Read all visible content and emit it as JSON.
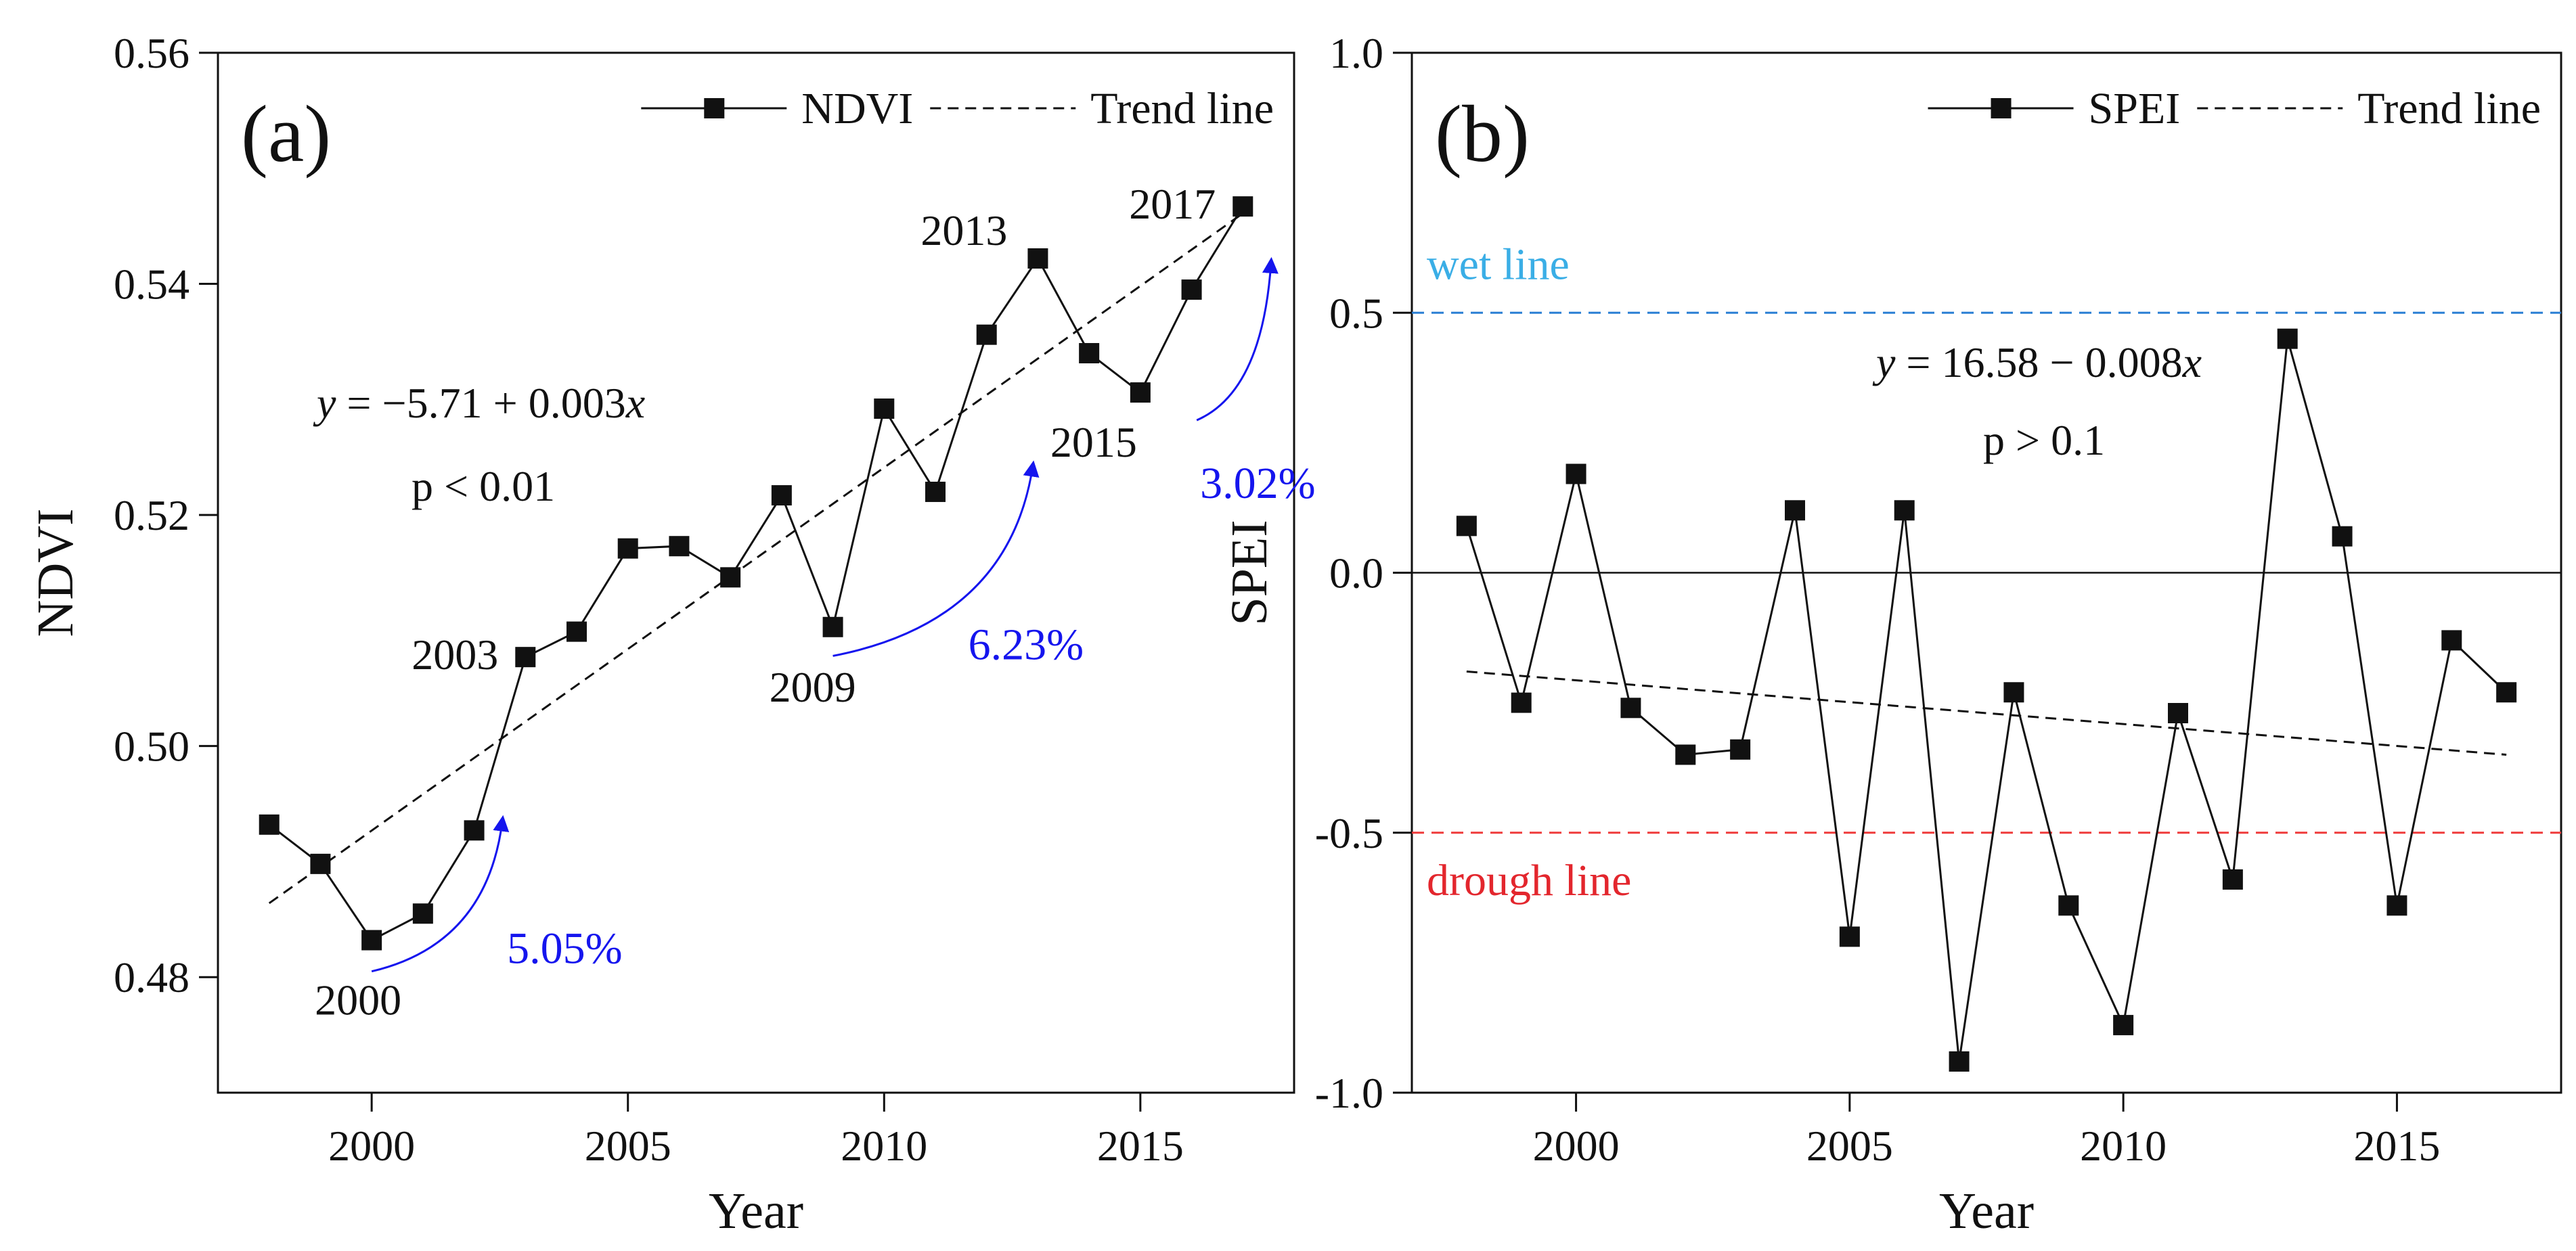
{
  "chart_data": [
    {
      "type": "line",
      "panel_label": "(a)",
      "xlabel": "Year",
      "ylabel": "NDVI",
      "xlim": [
        1997,
        2018
      ],
      "ylim": [
        0.47,
        0.56
      ],
      "xticks": [
        2000,
        2005,
        2010,
        2015
      ],
      "yticks": [
        0.48,
        0.5,
        0.52,
        0.54,
        0.56
      ],
      "ytick_labels": [
        "0.48",
        "0.50",
        "0.52",
        "0.54",
        "0.56"
      ],
      "legend": {
        "position": "top-right",
        "series_label": "NDVI",
        "trend_label": "Trend line"
      },
      "series": [
        {
          "name": "NDVI",
          "x": [
            1998,
            1999,
            2000,
            2001,
            2002,
            2003,
            2004,
            2005,
            2006,
            2007,
            2008,
            2009,
            2010,
            2011,
            2012,
            2013,
            2014,
            2015,
            2016,
            2017
          ],
          "values": [
            0.4932,
            0.4898,
            0.4832,
            0.4855,
            0.4927,
            0.5077,
            0.5099,
            0.5171,
            0.5173,
            0.5146,
            0.5217,
            0.5103,
            0.5292,
            0.522,
            0.5356,
            0.5422,
            0.534,
            0.5306,
            0.5395,
            0.5467
          ]
        }
      ],
      "trend": {
        "x": [
          1998,
          2017
        ],
        "y": [
          0.4864,
          0.5461
        ]
      },
      "equation": {
        "y": "y",
        "rest": " = −5.71 + 0.003",
        "x": "x"
      },
      "pvalue": "p < 0.01",
      "year_annotations": [
        {
          "text": "2000",
          "x": 2000,
          "y": 0.4832,
          "pos": "below"
        },
        {
          "text": "2003",
          "x": 2003,
          "y": 0.5077,
          "pos": "left"
        },
        {
          "text": "2009",
          "x": 2009,
          "y": 0.5103,
          "pos": "below"
        },
        {
          "text": "2013",
          "x": 2013,
          "y": 0.5422,
          "pos": "upper-left"
        },
        {
          "text": "2015",
          "x": 2015,
          "y": 0.5306,
          "pos": "below-left"
        },
        {
          "text": "2017",
          "x": 2017,
          "y": 0.5467,
          "pos": "left"
        }
      ],
      "growth_arrows": [
        {
          "label": "5.05%",
          "from": [
            2000,
            0.4805
          ],
          "to": [
            2002.55,
            0.4935
          ]
        },
        {
          "label": "6.23%",
          "from": [
            2009,
            0.5078
          ],
          "to": [
            2012.9,
            0.5242
          ]
        },
        {
          "label": "3.02%",
          "from": [
            2016.1,
            0.5282
          ],
          "to": [
            2017.55,
            0.5418
          ]
        }
      ],
      "colors": {
        "series": "#111111",
        "trend": "#111111",
        "arrow": "#1515ee"
      }
    },
    {
      "type": "line",
      "panel_label": "(b)",
      "xlabel": "Year",
      "ylabel": "SPEI",
      "xlim": [
        1997,
        2018
      ],
      "ylim": [
        -1.0,
        1.0
      ],
      "xticks": [
        2000,
        2005,
        2010,
        2015
      ],
      "yticks": [
        -1.0,
        -0.5,
        0.0,
        0.5,
        1.0
      ],
      "ytick_labels": [
        "-1.0",
        "-0.5",
        "0.0",
        "0.5",
        "1.0"
      ],
      "legend": {
        "position": "top-right",
        "series_label": "SPEI",
        "trend_label": "Trend line"
      },
      "series": [
        {
          "name": "SPEI",
          "x": [
            1998,
            1999,
            2000,
            2001,
            2002,
            2003,
            2004,
            2005,
            2006,
            2007,
            2008,
            2009,
            2010,
            2011,
            2012,
            2013,
            2014,
            2015,
            2016,
            2017
          ],
          "values": [
            0.09,
            -0.25,
            0.19,
            -0.26,
            -0.35,
            -0.34,
            0.12,
            -0.7,
            0.12,
            -0.94,
            -0.23,
            -0.64,
            -0.87,
            -0.27,
            -0.59,
            0.45,
            0.07,
            -0.64,
            -0.13,
            -0.23
          ]
        }
      ],
      "trend": {
        "x": [
          1998,
          2017
        ],
        "y": [
          -0.19,
          -0.35
        ]
      },
      "zero_line": 0.0,
      "reference_lines": [
        {
          "label": "wet line",
          "value": 0.5,
          "color": "#2a7fd4",
          "label_color": "#3aaee6"
        },
        {
          "label": "drough line",
          "value": -0.5,
          "color": "#ef3b3b",
          "label_color": "#e3262d"
        }
      ],
      "equation": {
        "y": "y",
        "rest": " = 16.58 − 0.008",
        "x": "x"
      },
      "pvalue": "p > 0.1",
      "colors": {
        "series": "#111111",
        "trend": "#111111"
      }
    }
  ]
}
